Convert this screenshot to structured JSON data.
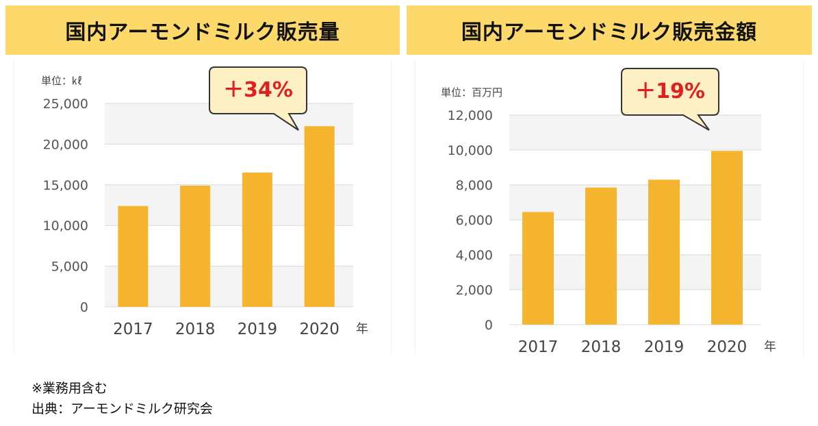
{
  "charts": [
    {
      "title": "国内アーモンドミルク販売量",
      "unit_label": "単位：㎘",
      "callout": "＋34%",
      "year_suffix": "年"
    },
    {
      "title": "国内アーモンドミルク販売金額",
      "unit_label": "単位：百万円",
      "callout": "＋19%",
      "year_suffix": "年"
    }
  ],
  "chart_data": [
    {
      "type": "bar",
      "title": "国内アーモンドミルク販売量",
      "ylabel": "単位：㎘",
      "categories": [
        "2017",
        "2018",
        "2019",
        "2020"
      ],
      "values": [
        12400,
        14900,
        16500,
        22200
      ],
      "yticks": [
        "0",
        "5,000",
        "10,000",
        "15,000",
        "20,000",
        "25,000"
      ],
      "ylim": [
        0,
        25000
      ],
      "xlabel": "年",
      "color": "#f5b52e",
      "annotation": "＋34%"
    },
    {
      "type": "bar",
      "title": "国内アーモンドミルク販売金額",
      "ylabel": "単位：百万円",
      "categories": [
        "2017",
        "2018",
        "2019",
        "2020"
      ],
      "values": [
        6450,
        7850,
        8300,
        9950
      ],
      "yticks": [
        "0",
        "2,000",
        "4,000",
        "6,000",
        "8,000",
        "10,000",
        "12,000"
      ],
      "ylim": [
        0,
        12000
      ],
      "xlabel": "年",
      "color": "#f5b52e",
      "annotation": "＋19%"
    }
  ],
  "notes": {
    "line1": "※業務用含む",
    "line2": "出典：アーモンドミルク研究会"
  }
}
